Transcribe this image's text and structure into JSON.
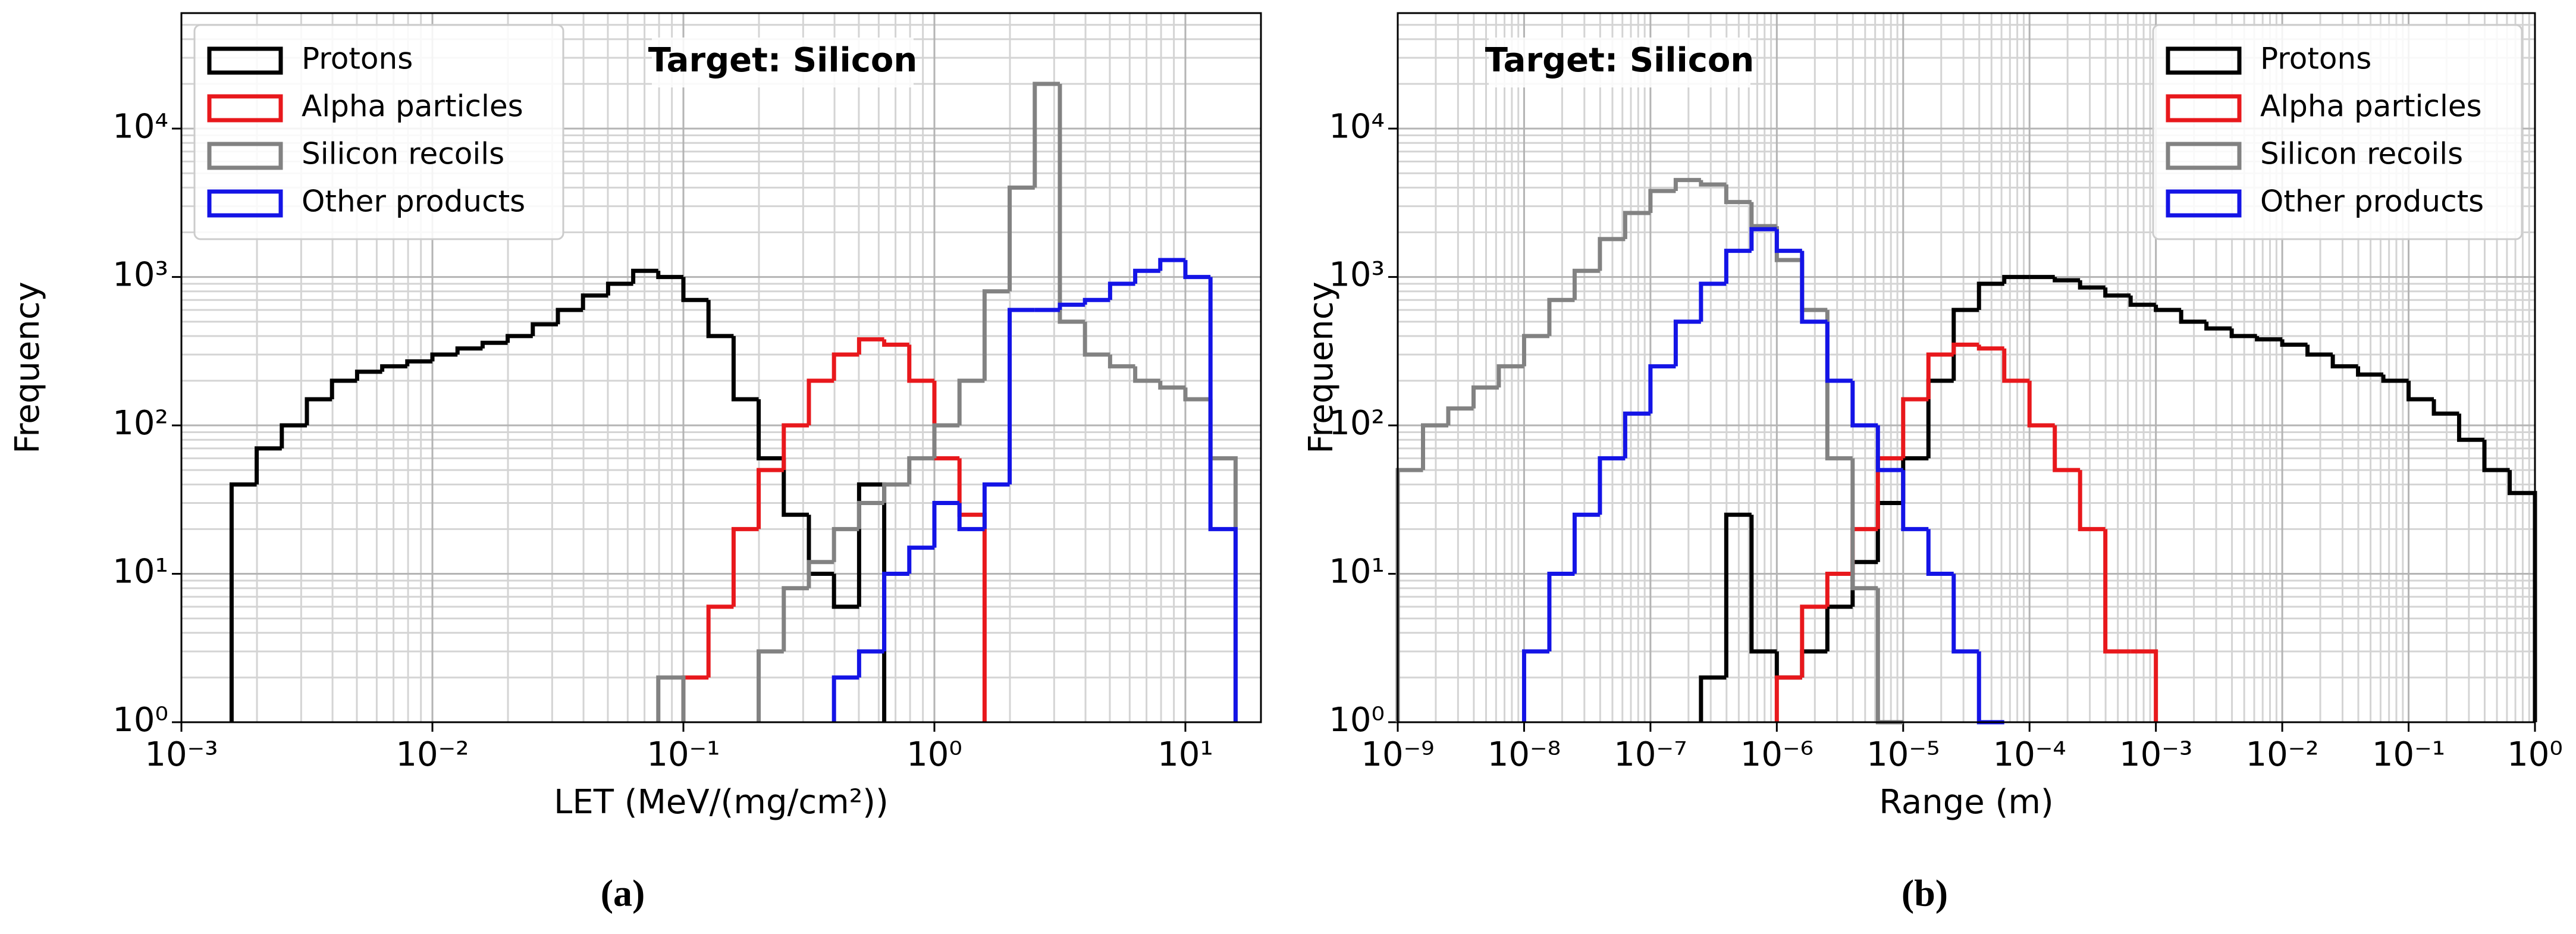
{
  "chart_data": [
    {
      "type": "histogram",
      "title": "Target: Silicon",
      "xlabel": "LET (MeV/(mg/cm²))",
      "ylabel": "Frequency",
      "caption": "(a)",
      "xscale": "log",
      "yscale": "log",
      "grid": true,
      "legend": "upper left",
      "xlim": [
        0.001,
        20
      ],
      "ylim": [
        1,
        60000
      ],
      "xticks": [
        {
          "value": 0.001,
          "label": "10⁻³"
        },
        {
          "value": 0.01,
          "label": "10⁻²"
        },
        {
          "value": 0.1,
          "label": "10⁻¹"
        },
        {
          "value": 1,
          "label": "10⁰"
        },
        {
          "value": 10,
          "label": "10¹"
        }
      ],
      "yticks": [
        {
          "value": 1,
          "label": "10⁰"
        },
        {
          "value": 10,
          "label": "10¹"
        },
        {
          "value": 100,
          "label": "10²"
        },
        {
          "value": 1000,
          "label": "10³"
        },
        {
          "value": 10000,
          "label": "10⁴"
        }
      ],
      "xticks_minor": [
        0.002,
        0.003,
        0.004,
        0.005,
        0.006,
        0.007,
        0.008,
        0.009,
        0.02,
        0.03,
        0.04,
        0.05,
        0.06,
        0.07,
        0.08,
        0.09,
        0.2,
        0.3,
        0.4,
        0.5,
        0.6,
        0.7,
        0.8,
        0.9,
        2,
        3,
        4,
        5,
        6,
        7,
        8,
        9
      ],
      "yticks_minor": [
        2,
        3,
        4,
        5,
        6,
        7,
        8,
        9,
        20,
        30,
        40,
        50,
        60,
        70,
        80,
        90,
        200,
        300,
        400,
        500,
        600,
        700,
        800,
        900,
        2000,
        3000,
        4000,
        5000,
        6000,
        7000,
        8000,
        9000,
        20000,
        30000,
        40000,
        50000
      ],
      "bins": [
        0.001585,
        0.001995,
        0.002512,
        0.003162,
        0.003981,
        0.005012,
        0.00631,
        0.007943,
        0.01,
        0.01259,
        0.01585,
        0.01995,
        0.02512,
        0.03162,
        0.03981,
        0.05012,
        0.0631,
        0.07943,
        0.1,
        0.1259,
        0.1585,
        0.1995,
        0.2512,
        0.3162,
        0.3981,
        0.5012,
        0.631,
        0.7943,
        1,
        1.259,
        1.585,
        1.995,
        2.512,
        3.162,
        3.981,
        5.012,
        6.31,
        7.943,
        10,
        12.59,
        15.85
      ],
      "series": [
        {
          "name": "Protons",
          "color": "#000000",
          "values": [
            40,
            70,
            100,
            150,
            200,
            230,
            250,
            270,
            300,
            330,
            360,
            400,
            480,
            600,
            750,
            900,
            1100,
            1000,
            700,
            400,
            150,
            60,
            25,
            10,
            6,
            40,
            null,
            null,
            null,
            null,
            null,
            null,
            null,
            null,
            null,
            null,
            null,
            null,
            null,
            null
          ]
        },
        {
          "name": "Alpha particles",
          "color": "#e8181c",
          "values": [
            null,
            null,
            null,
            null,
            null,
            null,
            null,
            null,
            null,
            null,
            null,
            null,
            null,
            null,
            null,
            null,
            null,
            null,
            2,
            6,
            20,
            50,
            100,
            200,
            300,
            380,
            350,
            200,
            60,
            25,
            null,
            null,
            null,
            null,
            null,
            null,
            null,
            null,
            null,
            null
          ]
        },
        {
          "name": "Silicon recoils",
          "color": "#828282",
          "values": [
            null,
            null,
            null,
            null,
            null,
            null,
            null,
            null,
            null,
            null,
            null,
            null,
            null,
            null,
            null,
            null,
            null,
            2,
            null,
            null,
            null,
            3,
            8,
            12,
            20,
            30,
            40,
            60,
            100,
            200,
            800,
            4000,
            20000,
            500,
            300,
            250,
            200,
            180,
            150,
            60
          ]
        },
        {
          "name": "Other products",
          "color": "#1414e6",
          "values": [
            null,
            null,
            null,
            null,
            null,
            null,
            null,
            null,
            null,
            null,
            null,
            null,
            null,
            null,
            null,
            null,
            null,
            null,
            null,
            null,
            null,
            null,
            null,
            null,
            2,
            3,
            10,
            15,
            30,
            20,
            40,
            600,
            600,
            650,
            700,
            900,
            1100,
            1300,
            1000,
            20
          ]
        }
      ]
    },
    {
      "type": "histogram",
      "title": "Target: Silicon",
      "xlabel": "Range (m)",
      "ylabel": "Frequency",
      "caption": "(b)",
      "xscale": "log",
      "yscale": "log",
      "grid": true,
      "legend": "upper right",
      "xlim": [
        1e-09,
        1
      ],
      "ylim": [
        1,
        60000
      ],
      "xticks": [
        {
          "value": 1e-09,
          "label": "10⁻⁹"
        },
        {
          "value": 1e-08,
          "label": "10⁻⁸"
        },
        {
          "value": 1e-07,
          "label": "10⁻⁷"
        },
        {
          "value": 1e-06,
          "label": "10⁻⁶"
        },
        {
          "value": 1e-05,
          "label": "10⁻⁵"
        },
        {
          "value": 0.0001,
          "label": "10⁻⁴"
        },
        {
          "value": 0.001,
          "label": "10⁻³"
        },
        {
          "value": 0.01,
          "label": "10⁻²"
        },
        {
          "value": 0.1,
          "label": "10⁻¹"
        },
        {
          "value": 1,
          "label": "10⁰"
        }
      ],
      "yticks": [
        {
          "value": 1,
          "label": "10⁰"
        },
        {
          "value": 10,
          "label": "10¹"
        },
        {
          "value": 100,
          "label": "10²"
        },
        {
          "value": 1000,
          "label": "10³"
        },
        {
          "value": 10000,
          "label": "10⁴"
        }
      ],
      "xticks_minor": [
        2e-09,
        3e-09,
        4e-09,
        5e-09,
        6e-09,
        7e-09,
        8e-09,
        9e-09,
        2e-08,
        3e-08,
        4e-08,
        5e-08,
        6e-08,
        7e-08,
        8e-08,
        9e-08,
        2e-07,
        3e-07,
        4e-07,
        5e-07,
        6e-07,
        7e-07,
        8e-07,
        9e-07,
        2e-06,
        3e-06,
        4e-06,
        5e-06,
        6e-06,
        7e-06,
        8e-06,
        9e-06,
        2e-05,
        3e-05,
        4e-05,
        5e-05,
        6e-05,
        7e-05,
        8e-05,
        9e-05,
        0.0002,
        0.0003,
        0.0004,
        0.0005,
        0.0006,
        0.0007,
        0.0008,
        0.0009,
        0.002,
        0.003,
        0.004,
        0.005,
        0.006,
        0.007,
        0.008,
        0.009,
        0.02,
        0.03,
        0.04,
        0.05,
        0.06,
        0.07,
        0.08,
        0.09,
        0.2,
        0.3,
        0.4,
        0.5,
        0.6,
        0.7,
        0.8,
        0.9
      ],
      "yticks_minor": [
        2,
        3,
        4,
        5,
        6,
        7,
        8,
        9,
        20,
        30,
        40,
        50,
        60,
        70,
        80,
        90,
        200,
        300,
        400,
        500,
        600,
        700,
        800,
        900,
        2000,
        3000,
        4000,
        5000,
        6000,
        7000,
        8000,
        9000,
        20000,
        30000,
        40000,
        50000
      ],
      "bins": [
        1e-09,
        1.585e-09,
        2.512e-09,
        3.981e-09,
        6.31e-09,
        1e-08,
        1.585e-08,
        2.512e-08,
        3.981e-08,
        6.31e-08,
        1e-07,
        1.585e-07,
        2.512e-07,
        3.981e-07,
        6.31e-07,
        1e-06,
        1.585e-06,
        2.512e-06,
        3.981e-06,
        6.31e-06,
        1e-05,
        1.585e-05,
        2.512e-05,
        3.981e-05,
        6.31e-05,
        0.0001,
        0.0001585,
        0.0002512,
        0.0003981,
        0.000631,
        0.001,
        0.001585,
        0.002512,
        0.003981,
        0.00631,
        0.01,
        0.01585,
        0.02512,
        0.03981,
        0.0631,
        0.1,
        0.1585,
        0.2512,
        0.3981,
        0.631,
        1
      ],
      "series": [
        {
          "name": "Protons",
          "color": "#000000",
          "values": [
            null,
            null,
            null,
            null,
            null,
            null,
            null,
            null,
            null,
            null,
            null,
            null,
            2,
            25,
            3,
            2,
            3,
            6,
            12,
            30,
            60,
            200,
            600,
            900,
            1000,
            1000,
            950,
            850,
            750,
            650,
            600,
            500,
            450,
            400,
            380,
            350,
            300,
            250,
            220,
            200,
            150,
            120,
            80,
            50,
            35
          ]
        },
        {
          "name": "Alpha particles",
          "color": "#e8181c",
          "values": [
            null,
            null,
            null,
            null,
            null,
            null,
            null,
            null,
            null,
            null,
            null,
            null,
            null,
            null,
            null,
            2,
            6,
            10,
            20,
            60,
            150,
            300,
            350,
            330,
            200,
            100,
            50,
            20,
            3,
            3,
            null,
            null,
            null,
            null,
            null,
            null,
            null,
            null,
            null,
            null,
            null,
            null,
            null,
            null,
            null
          ]
        },
        {
          "name": "Silicon recoils",
          "color": "#828282",
          "values": [
            50,
            100,
            130,
            180,
            250,
            400,
            700,
            1100,
            1800,
            2700,
            3800,
            4500,
            4200,
            3200,
            2200,
            1300,
            600,
            60,
            8,
            1,
            null,
            null,
            null,
            null,
            null,
            null,
            null,
            null,
            null,
            null,
            null,
            null,
            null,
            null,
            null,
            null,
            null,
            null,
            null,
            null,
            null,
            null,
            null,
            null,
            null
          ]
        },
        {
          "name": "Other products",
          "color": "#1414e6",
          "values": [
            null,
            null,
            null,
            null,
            null,
            3,
            10,
            25,
            60,
            120,
            250,
            500,
            900,
            1500,
            2100,
            1500,
            500,
            200,
            100,
            50,
            20,
            10,
            3,
            1,
            null,
            null,
            null,
            null,
            null,
            null,
            null,
            null,
            null,
            null,
            null,
            null,
            null,
            null,
            null,
            null,
            null,
            null,
            null,
            null,
            null
          ]
        }
      ]
    }
  ]
}
